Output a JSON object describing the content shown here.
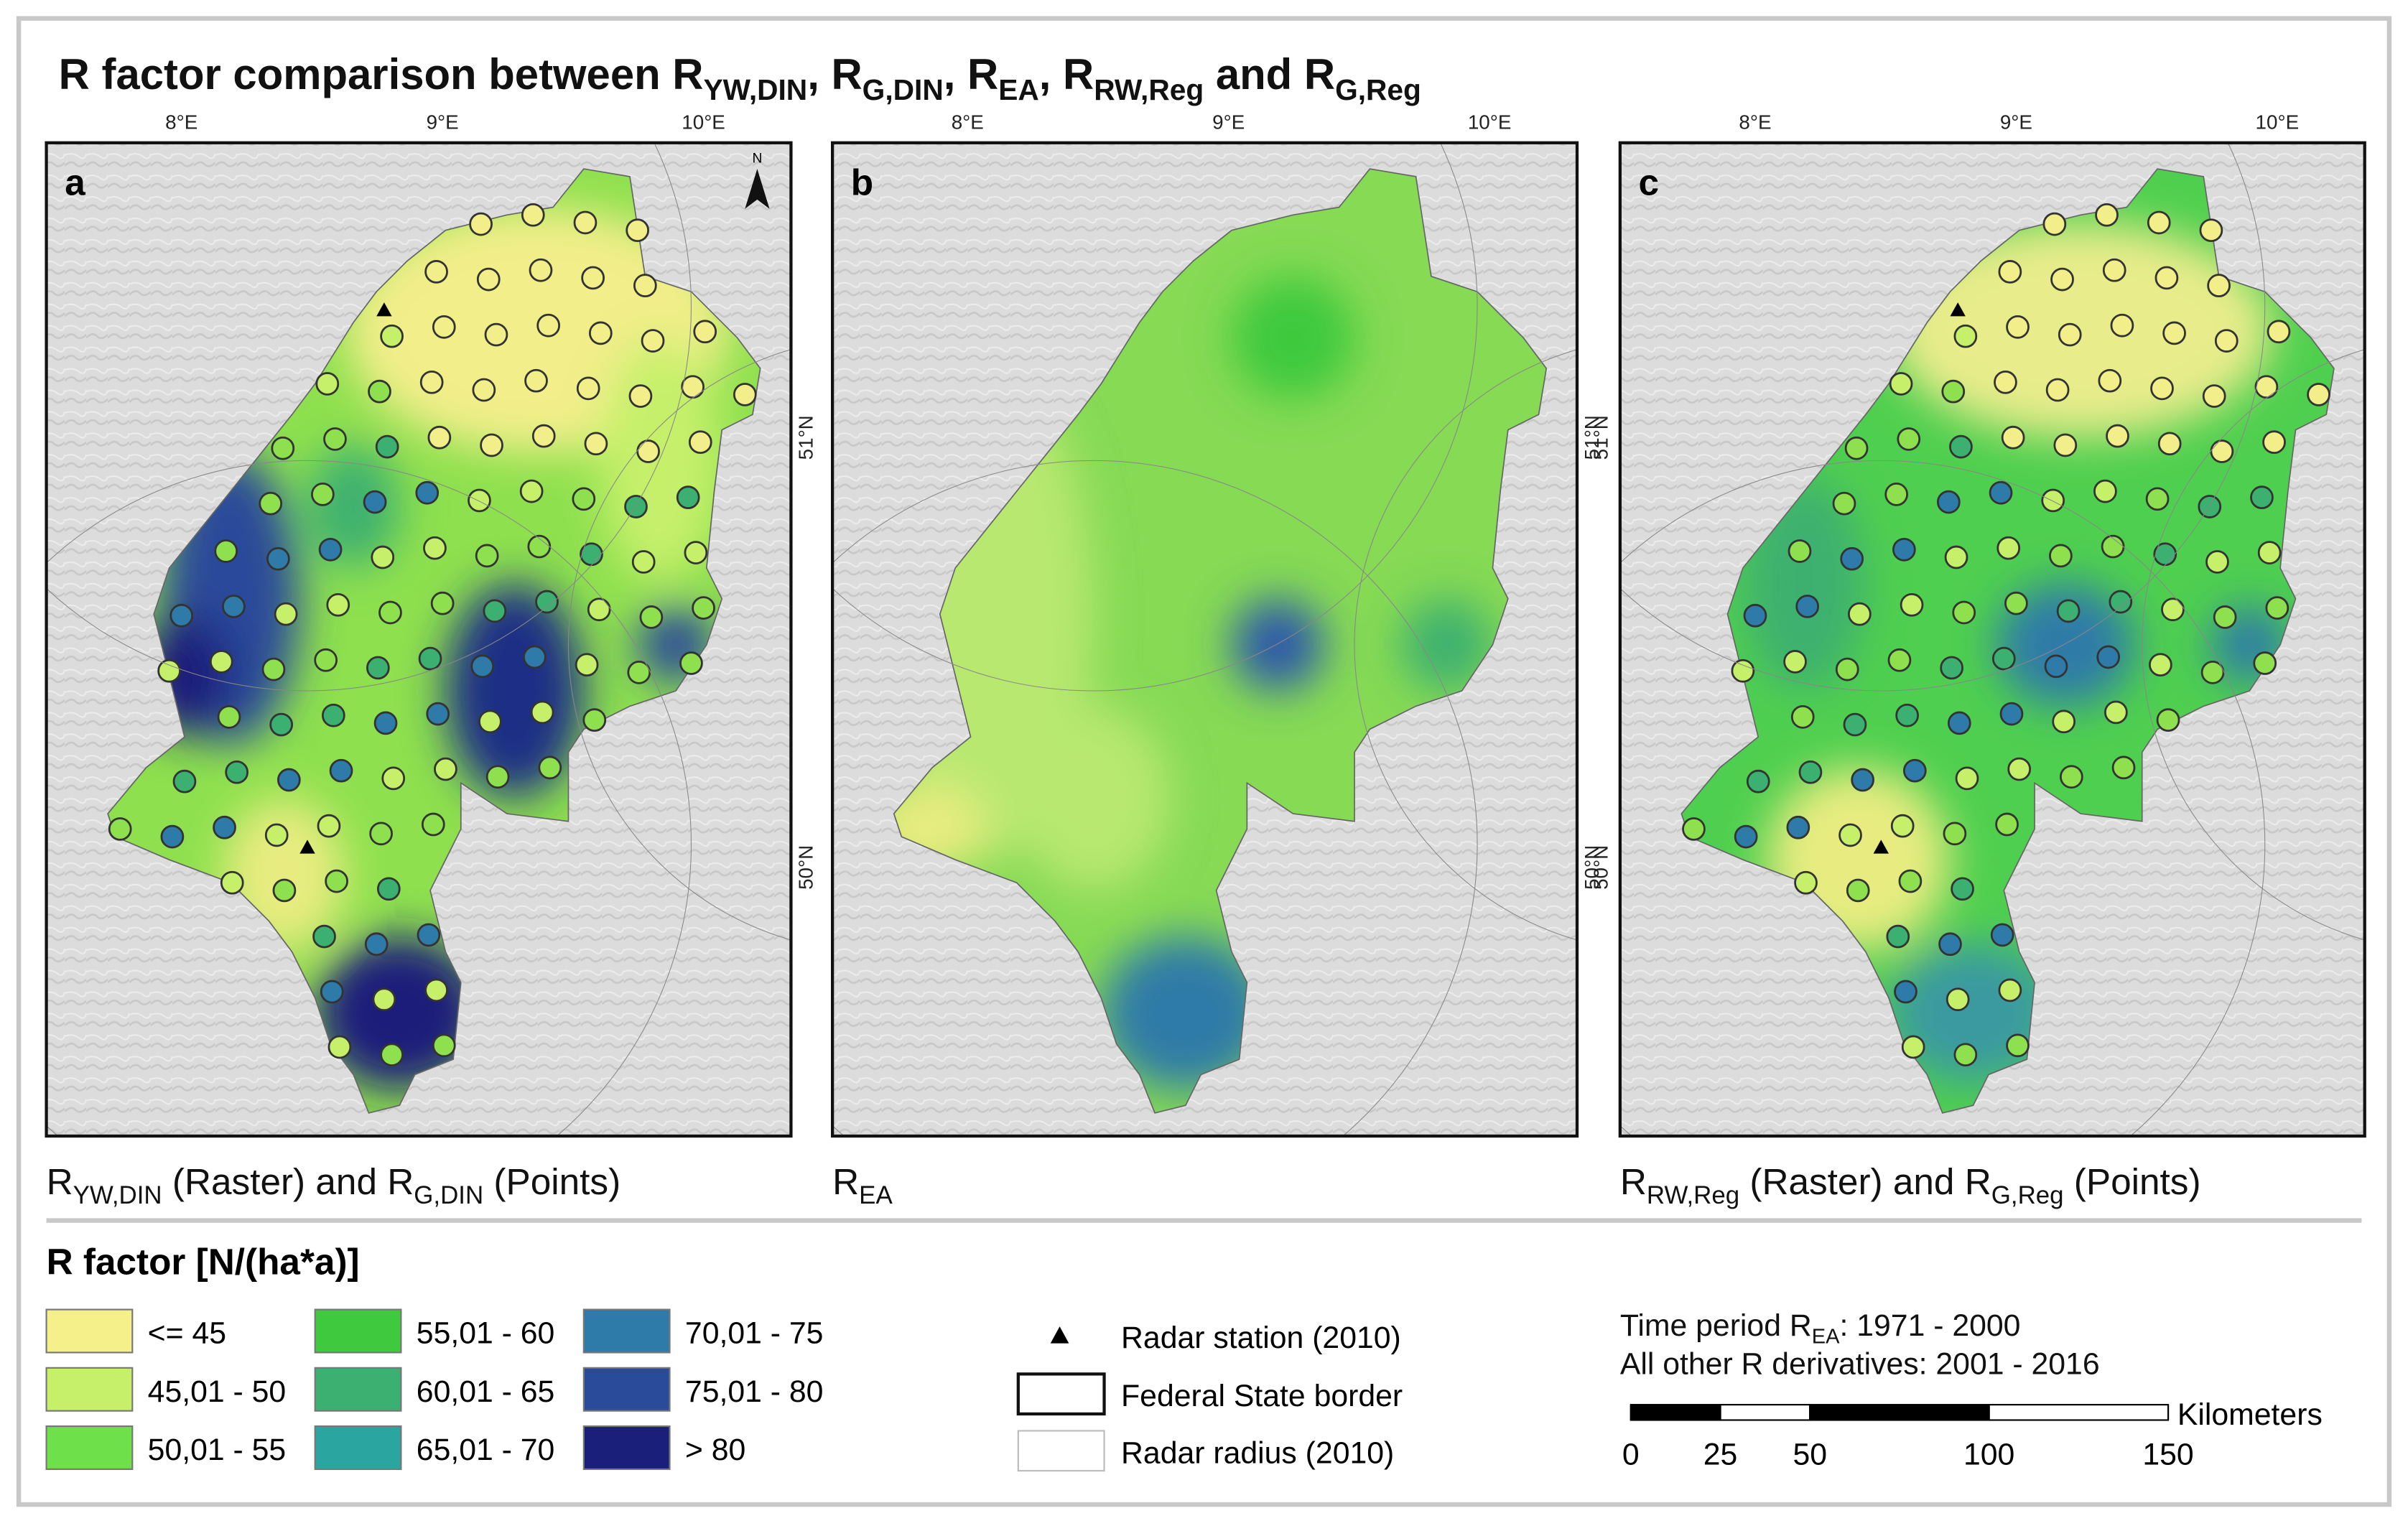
{
  "title": {
    "runs": [
      {
        "text": "R factor comparison between R",
        "sub": "YW,DIN"
      },
      {
        "text": ", R",
        "sub": "G,DIN"
      },
      {
        "text": ", R",
        "sub": "EA"
      },
      {
        "text": ", R",
        "sub": "RW,Reg"
      },
      {
        "text": " and R",
        "sub": "G,Reg"
      }
    ]
  },
  "panels": [
    {
      "letter": "a",
      "lon_labels": [
        "8°E",
        "9°E",
        "10°E"
      ],
      "lat_labels": [
        "51°N",
        "50°N"
      ],
      "caption": {
        "runs": [
          {
            "text": "R",
            "sub": "YW,DIN"
          },
          {
            "text": " (Raster) and R",
            "sub": "G,DIN"
          },
          {
            "text": " (Points)"
          }
        ]
      }
    },
    {
      "letter": "b",
      "lon_labels": [
        "8°E",
        "9°E",
        "10°E"
      ],
      "lat_labels": [
        "51°N",
        "50°N"
      ],
      "caption": {
        "runs": [
          {
            "text": "R",
            "sub": "EA"
          }
        ]
      }
    },
    {
      "letter": "c",
      "lon_labels": [
        "8°E",
        "9°E",
        "10°E"
      ],
      "lat_labels": [
        "51°N",
        "50°N"
      ],
      "caption": {
        "runs": [
          {
            "text": "R",
            "sub": "RW,Reg"
          },
          {
            "text": " (Raster) and R",
            "sub": "G,Reg"
          },
          {
            "text": " (Points)"
          }
        ]
      }
    }
  ],
  "north_arrow": "N",
  "legend": {
    "title": "R factor [N/(ha*a)]",
    "classes": [
      {
        "label": "<= 45",
        "color": "#f6f08a"
      },
      {
        "label": "45,01 - 50",
        "color": "#c6f06a"
      },
      {
        "label": "50,01 - 55",
        "color": "#6ee04a"
      },
      {
        "label": "55,01 - 60",
        "color": "#3ec93e"
      },
      {
        "label": "60,01 - 65",
        "color": "#3cb070"
      },
      {
        "label": "65,01 - 70",
        "color": "#2aa5a0"
      },
      {
        "label": "70,01 - 75",
        "color": "#2e7aa8"
      },
      {
        "label": "75,01 - 80",
        "color": "#2a4a9a"
      },
      {
        "label": "> 80",
        "color": "#1a1f7a"
      }
    ],
    "symbols": [
      "Radar station (2010)",
      "Federal State border",
      "Radar radius (2010)"
    ]
  },
  "notes": {
    "lines": [
      {
        "runs": [
          {
            "text": "Time period R",
            "sub": "EA"
          },
          {
            "text": ": 1971 - 2000"
          }
        ]
      },
      {
        "runs": [
          {
            "text": "All other R derivatives: 2001 - 2016"
          }
        ]
      }
    ]
  },
  "scale_bar": {
    "unit": "Kilometers",
    "ticks": [
      0,
      25,
      50,
      100,
      150
    ]
  }
}
